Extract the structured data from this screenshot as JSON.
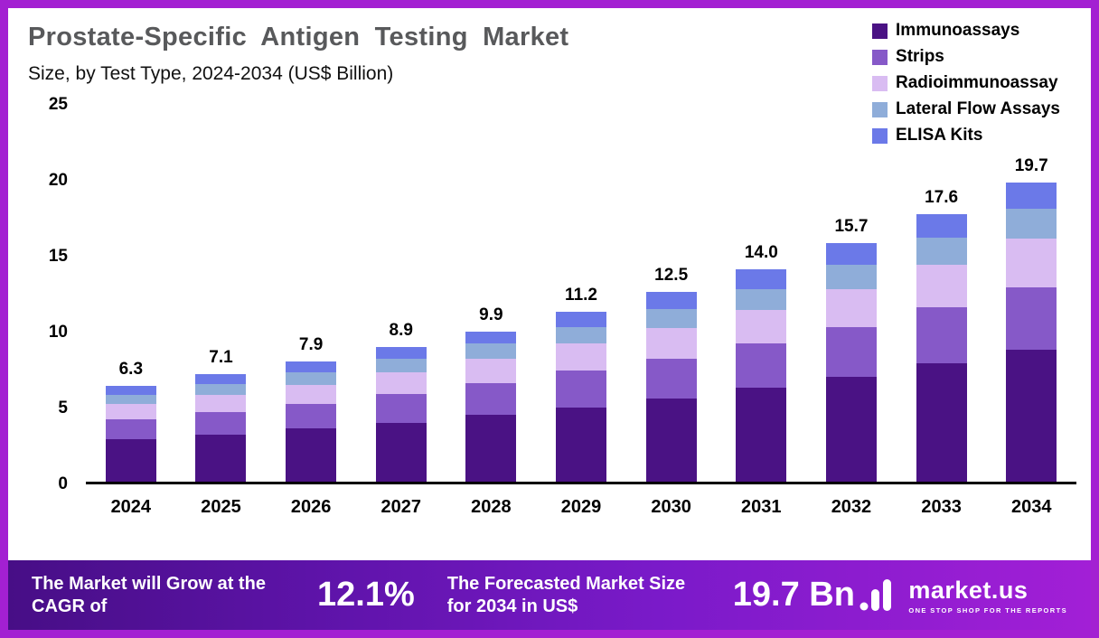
{
  "header": {
    "title": "Prostate-Specific Antigen Testing Market",
    "subtitle": "Size, by Test Type, 2024-2034 (US$ Billion)"
  },
  "chart_data": {
    "type": "bar",
    "stacked": true,
    "title": "Prostate-Specific Antigen Testing Market Size, by Test Type, 2024-2034 (US$ Billion)",
    "categories": [
      "2024",
      "2025",
      "2026",
      "2027",
      "2028",
      "2029",
      "2030",
      "2031",
      "2032",
      "2033",
      "2034"
    ],
    "totals": [
      "6.3",
      "7.1",
      "7.9",
      "8.9",
      "9.9",
      "11.2",
      "12.5",
      "14.0",
      "15.7",
      "17.6",
      "19.7"
    ],
    "series": [
      {
        "name": "Immunoassays",
        "color": "#4a1284",
        "values": [
          2.8,
          3.1,
          3.5,
          3.9,
          4.4,
          4.9,
          5.5,
          6.2,
          6.9,
          7.8,
          8.7
        ]
      },
      {
        "name": "Strips",
        "color": "#8659c8",
        "values": [
          1.3,
          1.5,
          1.6,
          1.9,
          2.1,
          2.4,
          2.6,
          2.9,
          3.3,
          3.7,
          4.1
        ]
      },
      {
        "name": "Radioimmunoassay",
        "color": "#d9bcf2",
        "values": [
          1.0,
          1.1,
          1.3,
          1.4,
          1.6,
          1.8,
          2.0,
          2.2,
          2.5,
          2.8,
          3.2
        ]
      },
      {
        "name": "Lateral Flow Assays",
        "color": "#8fadd9",
        "values": [
          0.6,
          0.7,
          0.8,
          0.9,
          1.0,
          1.1,
          1.3,
          1.4,
          1.6,
          1.8,
          2.0
        ]
      },
      {
        "name": "ELISA Kits",
        "color": "#6b79e8",
        "values": [
          0.6,
          0.7,
          0.7,
          0.8,
          0.8,
          1.0,
          1.1,
          1.3,
          1.4,
          1.5,
          1.7
        ]
      }
    ],
    "xlabel": "",
    "ylabel": "",
    "ylim": [
      0,
      25
    ],
    "yticks": [
      0,
      5,
      10,
      15,
      20,
      25
    ],
    "grid": false,
    "legend_position": "top-right"
  },
  "footer": {
    "cagr_label": "The Market will Grow at the CAGR of",
    "cagr_value": "12.1%",
    "forecast_label": "The Forecasted Market Size for 2034 in US$",
    "forecast_value": "19.7 Bn",
    "brand": "market.us",
    "brand_tagline": "ONE STOP SHOP FOR THE REPORTS"
  },
  "colors": {
    "frame": "#a320d2",
    "title_text": "#58595b",
    "axis_line": "#000000",
    "footer_gradient_start": "#470e86",
    "footer_gradient_end": "#a21fd6"
  }
}
